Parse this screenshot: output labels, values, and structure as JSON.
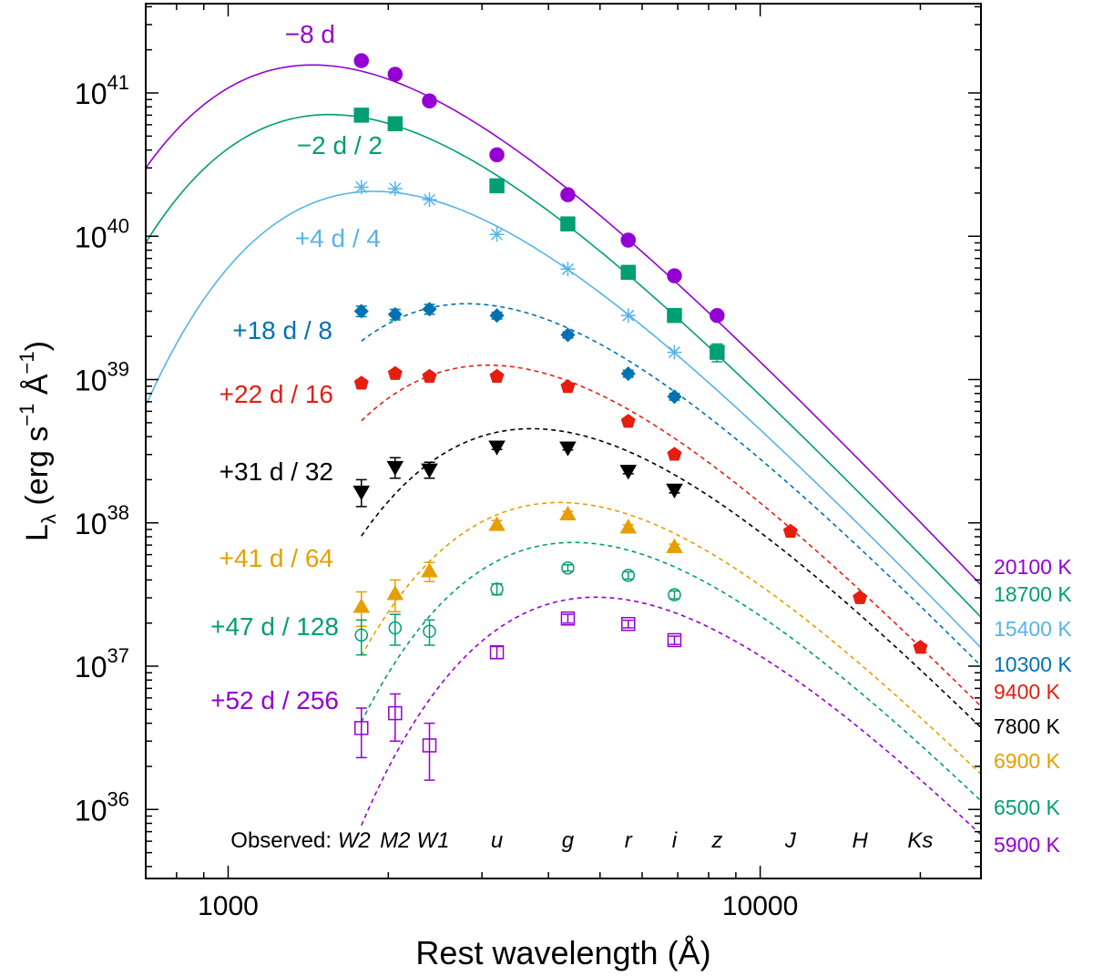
{
  "chart_data": {
    "type": "scatter",
    "title": "",
    "xlabel": "Rest wavelength (Å)",
    "ylabel": "L_λ (erg s^-1 Å^-1)",
    "ylabel_parts": {
      "L": "L",
      "sub": "λ",
      "main": " (erg s",
      "exp1": "−1",
      "mid": " Å",
      "exp2": "−1",
      "end": ")"
    },
    "xscale": "log",
    "yscale": "log",
    "xlim": [
      700,
      26000
    ],
    "ylim": [
      3.3e+35,
      4.2e+41
    ],
    "x_ticks": [
      {
        "value": 1000,
        "label": "1000"
      },
      {
        "value": 10000,
        "label": "10000"
      }
    ],
    "y_ticks": [
      {
        "value": 1e+36,
        "base": "10",
        "exp": "36"
      },
      {
        "value": 1e+37,
        "base": "10",
        "exp": "37"
      },
      {
        "value": 1e+38,
        "base": "10",
        "exp": "38"
      },
      {
        "value": 1e+39,
        "base": "10",
        "exp": "39"
      },
      {
        "value": 1e+40,
        "base": "10",
        "exp": "40"
      },
      {
        "value": 1e+41,
        "base": "10",
        "exp": "41"
      }
    ],
    "observed_label": "Observed:",
    "filters": [
      {
        "name": "W2",
        "x": 1780
      },
      {
        "name": "M2",
        "x": 2060
      },
      {
        "name": "W1",
        "x": 2390
      },
      {
        "name": "u",
        "x": 3200
      },
      {
        "name": "g",
        "x": 4350
      },
      {
        "name": "r",
        "x": 5650
      },
      {
        "name": "i",
        "x": 6900
      },
      {
        "name": "z",
        "x": 8300
      },
      {
        "name": "J",
        "x": 11400
      },
      {
        "name": "H",
        "x": 15400
      },
      {
        "name": "Ks",
        "x": 20000
      }
    ],
    "series": [
      {
        "name": "−8 d",
        "temp_label": "20100 K",
        "T": 20100,
        "color": "#9400d3",
        "marker": "circle",
        "fill": true,
        "line": "solid",
        "fit_xmin": 700,
        "x": [
          1780,
          2060,
          2390,
          3200,
          4350,
          5650,
          6900,
          8300
        ],
        "y": [
          1.68e+41,
          1.35e+41,
          8.8e+40,
          3.7e+40,
          1.95e+40,
          9.4e+39,
          5.3e+39,
          2.8e+39
        ],
        "err": [
          0,
          0,
          0,
          0,
          0,
          0,
          0,
          0
        ]
      },
      {
        "name": "−2 d / 2",
        "temp_label": "18700 K",
        "T": 18700,
        "color": "#009e73",
        "marker": "square",
        "fill": true,
        "line": "solid",
        "fit_xmin": 700,
        "x": [
          1780,
          2060,
          2390,
          3200,
          4350,
          5650,
          6900,
          8300
        ],
        "y": [
          7e+40,
          6.1e+40,
          0,
          2.25e+40,
          1.22e+40,
          5.6e+39,
          2.8e+39,
          1.55e+39
        ],
        "err": [
          0,
          0,
          0,
          0,
          0,
          0,
          0,
          2.2e+38
        ]
      },
      {
        "name": "+4 d / 4",
        "temp_label": "15400 K",
        "T": 15400,
        "color": "#56b4e9",
        "marker": "star",
        "fill": false,
        "line": "solid",
        "fit_xmin": 700,
        "x": [
          1780,
          2060,
          2390,
          3200,
          4350,
          5650,
          6900
        ],
        "y": [
          2.2e+40,
          2.15e+40,
          1.8e+40,
          1.03e+40,
          5.9e+39,
          2.8e+39,
          1.55e+39
        ],
        "err": [
          0,
          0,
          0,
          0,
          0,
          0,
          0
        ]
      },
      {
        "name": "+18 d / 8",
        "temp_label": "10300 K",
        "T": 10300,
        "color": "#0072b2",
        "marker": "diamond",
        "fill": true,
        "line": "dashed",
        "fit_xmin": 1780,
        "x": [
          1780,
          2060,
          2390,
          3200,
          4350,
          5650,
          6900
        ],
        "y": [
          3e+39,
          2.85e+39,
          3.1e+39,
          2.8e+39,
          2.05e+39,
          1.1e+39,
          7.6e+38
        ],
        "err": [
          2.5e+38,
          2.4e+38,
          2.4e+38,
          1.5e+38,
          1e+38,
          6e+37,
          4e+37
        ]
      },
      {
        "name": "+22 d / 16",
        "temp_label": "9400 K",
        "T": 9400,
        "color": "#e51e10",
        "marker": "pentagon",
        "fill": true,
        "line": "dashed",
        "fit_xmin": 1780,
        "x": [
          1780,
          2060,
          2390,
          3200,
          4350,
          5650,
          6900,
          11400,
          15400,
          20000
        ],
        "y": [
          9.4e+38,
          1.1e+39,
          1.05e+39,
          1.05e+39,
          8.9e+38,
          5.1e+38,
          3e+38,
          8.7e+37,
          3e+37,
          1.35e+37
        ],
        "err": [
          6e+37,
          6e+37,
          6e+37,
          4e+37,
          3e+37,
          2e+37,
          1.5e+37,
          4e+36,
          1.5e+36,
          6e+35
        ]
      },
      {
        "name": "+31 d / 32",
        "temp_label": "7800 K",
        "T": 7800,
        "color": "#000000",
        "marker": "triangle-down",
        "fill": true,
        "line": "dashed",
        "fit_xmin": 1780,
        "x": [
          1780,
          2060,
          2390,
          3200,
          4350,
          5650,
          6900
        ],
        "y": [
          1.65e+38,
          2.45e+38,
          2.35e+38,
          3.4e+38,
          3.35e+38,
          2.3e+38,
          1.7e+38
        ],
        "err": [
          3.5e+37,
          4e+37,
          3e+37,
          1.5e+37,
          1.2e+37,
          1e+37,
          8e+36
        ]
      },
      {
        "name": "+41 d / 64",
        "temp_label": "6900 K",
        "T": 6900,
        "color": "#e69f00",
        "marker": "triangle-up",
        "fill": true,
        "line": "dashed",
        "fit_xmin": 1780,
        "x": [
          1780,
          2060,
          2390,
          3200,
          4350,
          5650,
          6900
        ],
        "y": [
          2.6e+37,
          3.2e+37,
          4.6e+37,
          9.7e+37,
          1.15e+38,
          9.3e+37,
          6.8e+37
        ],
        "err": [
          7e+36,
          8e+36,
          7e+36,
          7e+36,
          5e+36,
          4e+36,
          3e+36
        ]
      },
      {
        "name": "+47 d / 128",
        "temp_label": "6500 K",
        "T": 6500,
        "color": "#009e73",
        "marker": "circle",
        "fill": false,
        "line": "dashed",
        "fit_xmin": 1780,
        "x": [
          1780,
          2060,
          2390,
          3200,
          4350,
          5650,
          6900
        ],
        "y": [
          1.65e+37,
          1.85e+37,
          1.75e+37,
          3.45e+37,
          4.85e+37,
          4.3e+37,
          3.15e+37
        ],
        "err": [
          4.5e+36,
          4.5e+36,
          3.5e+36,
          3e+36,
          2.5e+36,
          2.5e+36,
          2e+36
        ]
      },
      {
        "name": "+52 d / 256",
        "temp_label": "5900 K",
        "T": 5900,
        "color": "#9400d3",
        "marker": "square",
        "fill": false,
        "line": "dashed",
        "fit_xmin": 1780,
        "x": [
          1780,
          2060,
          2390,
          3200,
          4350,
          5650,
          6900
        ],
        "y": [
          3.7e+36,
          4.7e+36,
          2.8e+36,
          1.25e+37,
          2.15e+37,
          1.97e+37,
          1.52e+37
        ],
        "err": [
          1.4e+36,
          1.7e+36,
          1.2e+36,
          1.2e+36,
          1.5e+36,
          1.2e+36,
          1e+36
        ]
      }
    ]
  }
}
